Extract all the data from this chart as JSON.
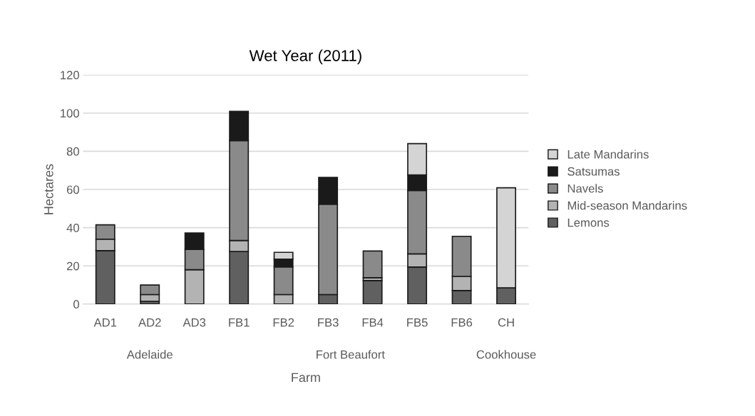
{
  "chart_data": {
    "type": "bar",
    "stacked": true,
    "title": "Wet Year (2011)",
    "xlabel": "Farm",
    "ylabel": "Hectares",
    "categories": [
      "AD1",
      "AD2",
      "AD3",
      "FB1",
      "FB2",
      "FB3",
      "FB4",
      "FB5",
      "FB6",
      "CH"
    ],
    "series": [
      {
        "name": "Lemons",
        "color": "#606060",
        "values": [
          28,
          1.4,
          null,
          27.5,
          null,
          5,
          12.3,
          19.4,
          7.1,
          8.5
        ]
      },
      {
        "name": "Mid-season Mandarins",
        "color": "#b3b3b3",
        "values": [
          6,
          3.6,
          18,
          5.8,
          5,
          null,
          1.5,
          6.9,
          7.4,
          null
        ]
      },
      {
        "name": "Navels",
        "color": "#8a8a8a",
        "values": [
          7.5,
          5,
          10.6,
          52.3,
          14.5,
          47.3,
          14,
          33.2,
          21,
          null
        ]
      },
      {
        "name": "Satsumas",
        "color": "#1a1a1a",
        "values": [
          null,
          null,
          8.6,
          15.3,
          4,
          14,
          null,
          8.1,
          null,
          null
        ]
      },
      {
        "name": "Late Mandarins",
        "color": "#d4d4d4",
        "values": [
          null,
          null,
          null,
          null,
          3.6,
          null,
          null,
          16.4,
          null,
          52.4
        ]
      }
    ],
    "annotations": [
      "Adelaide",
      "Fort Beaufort",
      "Cookhouse"
    ],
    "ylim": [
      0,
      120
    ],
    "yticks": [
      0,
      20,
      40,
      60,
      80,
      100,
      120
    ],
    "grid": "y",
    "legend": "right"
  }
}
